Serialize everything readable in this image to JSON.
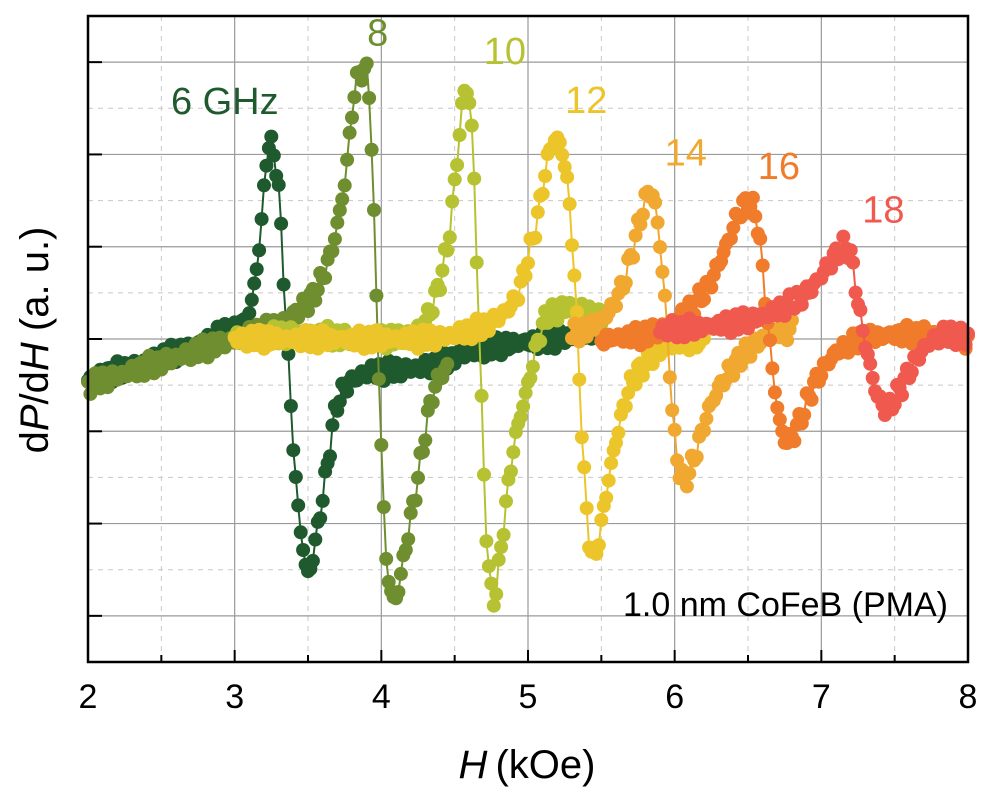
{
  "chart_data": {
    "type": "line",
    "xlabel": "H (kOe)",
    "xlabel_italic": "H",
    "xlabel_unit": "(kOe)",
    "ylabel": "dP/dH (a. u.)",
    "ylabel_parts": [
      "d",
      "P",
      "/d",
      "H",
      " (a. u.)"
    ],
    "xlim": [
      2,
      8
    ],
    "ylim": [
      -3.5,
      3.5
    ],
    "x_ticks": [
      2,
      3,
      4,
      5,
      6,
      7,
      8
    ],
    "y_ticks": [
      -3,
      -2,
      -1,
      0,
      1,
      2,
      3
    ],
    "y_tick_labels_shown": false,
    "grid": true,
    "annotation": "1.0 nm CoFeB (PMA)",
    "markers": "filled-circle",
    "series": [
      {
        "name": "6 GHz",
        "label": "6 GHz",
        "color": "#1e5a2e",
        "x": [
          2.0,
          2.3,
          2.6,
          2.9,
          3.1,
          3.18,
          3.22,
          3.26,
          3.3,
          3.35,
          3.42,
          3.47,
          3.5,
          3.55,
          3.62,
          3.7,
          3.85,
          4.0,
          4.3,
          4.6,
          4.9,
          5.2,
          5.5
        ],
        "y": [
          -0.45,
          -0.3,
          -0.15,
          0.05,
          0.3,
          1.2,
          2.0,
          2.05,
          1.6,
          0.2,
          -1.6,
          -2.3,
          -2.55,
          -2.2,
          -1.5,
          -0.7,
          -0.4,
          -0.35,
          -0.3,
          -0.15,
          -0.05,
          0.0,
          0.1
        ]
      },
      {
        "name": "8",
        "label": "8",
        "color": "#6e8e30",
        "x": [
          2.0,
          2.4,
          2.8,
          3.2,
          3.5,
          3.65,
          3.75,
          3.82,
          3.88,
          3.92,
          3.97,
          4.02,
          4.06,
          4.1,
          4.15,
          4.25,
          4.35,
          4.45
        ],
        "y": [
          -0.5,
          -0.3,
          -0.1,
          0.1,
          0.4,
          0.9,
          1.7,
          2.7,
          2.9,
          2.6,
          0.3,
          -2.0,
          -2.7,
          -2.8,
          -2.4,
          -1.5,
          -0.6,
          -0.3
        ]
      },
      {
        "name": "10",
        "label": "10",
        "color": "#b6c232",
        "x": [
          3.0,
          3.5,
          4.0,
          4.3,
          4.45,
          4.52,
          4.57,
          4.62,
          4.66,
          4.72,
          4.77,
          4.82,
          4.9,
          5.0,
          5.1,
          5.2,
          5.35,
          5.5
        ],
        "y": [
          0.0,
          0.05,
          0.0,
          0.2,
          1.0,
          2.0,
          2.7,
          2.2,
          0.4,
          -2.2,
          -2.8,
          -2.2,
          -1.2,
          -0.5,
          0.15,
          0.3,
          0.35,
          0.2
        ]
      },
      {
        "name": "12",
        "label": "12",
        "color": "#ecc52a",
        "x": [
          3.0,
          3.5,
          4.0,
          4.5,
          4.9,
          5.05,
          5.15,
          5.22,
          5.28,
          5.33,
          5.38,
          5.43,
          5.48,
          5.52,
          5.6,
          5.7,
          5.85,
          6.0,
          6.2
        ],
        "y": [
          0.0,
          0.0,
          0.0,
          0.05,
          0.4,
          1.2,
          2.05,
          2.1,
          1.5,
          0.3,
          -1.4,
          -2.3,
          -2.2,
          -1.8,
          -1.1,
          -0.5,
          -0.2,
          -0.05,
          0.0
        ]
      },
      {
        "name": "14",
        "label": "14",
        "color": "#f0a830",
        "x": [
          5.3,
          5.5,
          5.65,
          5.75,
          5.83,
          5.88,
          5.94,
          5.99,
          6.03,
          6.08,
          6.15,
          6.25,
          6.4,
          6.6,
          6.8
        ],
        "y": [
          0.05,
          0.2,
          0.6,
          1.2,
          1.6,
          1.3,
          0.3,
          -0.9,
          -1.4,
          -1.5,
          -1.2,
          -0.7,
          -0.3,
          0.0,
          0.1
        ]
      },
      {
        "name": "16",
        "label": "16",
        "color": "#f07b2a",
        "x": [
          5.5,
          5.9,
          6.2,
          6.35,
          6.45,
          6.52,
          6.57,
          6.62,
          6.68,
          6.73,
          6.78,
          6.85,
          6.95,
          7.1,
          7.3,
          7.6,
          8.0
        ],
        "y": [
          0.0,
          0.1,
          0.5,
          1.0,
          1.4,
          1.45,
          1.2,
          0.4,
          -0.5,
          -1.0,
          -1.1,
          -0.9,
          -0.5,
          -0.15,
          0.0,
          0.05,
          0.0
        ]
      },
      {
        "name": "18",
        "label": "18",
        "color": "#f05a4e",
        "x": [
          5.9,
          6.3,
          6.6,
          6.9,
          7.05,
          7.15,
          7.2,
          7.26,
          7.32,
          7.38,
          7.45,
          7.55,
          7.7,
          7.85,
          8.0
        ],
        "y": [
          0.1,
          0.15,
          0.25,
          0.5,
          0.8,
          1.0,
          0.9,
          0.3,
          -0.2,
          -0.6,
          -0.75,
          -0.5,
          -0.1,
          0.05,
          0.0
        ]
      }
    ]
  }
}
